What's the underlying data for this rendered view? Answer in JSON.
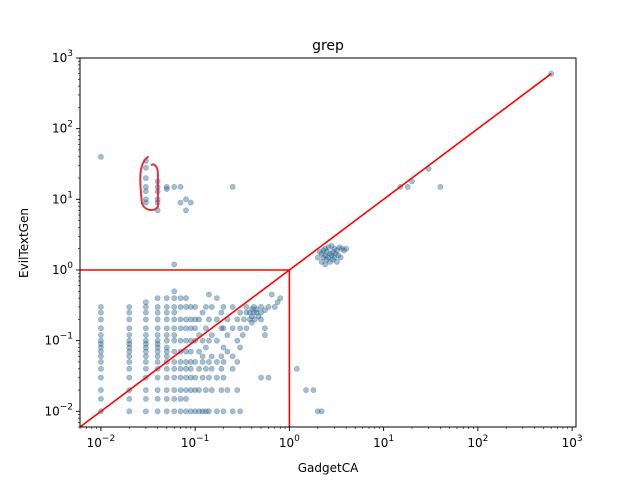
{
  "chart_data": {
    "type": "scatter",
    "title": "grep",
    "xlabel": "GadgetCA",
    "ylabel": "EvilTextGen",
    "xscale": "log",
    "yscale": "log",
    "xlim": [
      0.006,
      1100
    ],
    "ylim": [
      0.006,
      1000
    ],
    "x_tick_values": [
      0.01,
      0.1,
      1,
      10,
      100,
      1000
    ],
    "y_tick_values": [
      0.01,
      0.1,
      1,
      10,
      100,
      1000
    ],
    "x_tick_labels": [
      {
        "base": "10",
        "exp": "−2"
      },
      {
        "base": "10",
        "exp": "−1"
      },
      {
        "base": "10",
        "exp": "0"
      },
      {
        "base": "10",
        "exp": "1"
      },
      {
        "base": "10",
        "exp": "2"
      },
      {
        "base": "10",
        "exp": "3"
      }
    ],
    "y_tick_labels": [
      {
        "base": "10",
        "exp": "−2"
      },
      {
        "base": "10",
        "exp": "−1"
      },
      {
        "base": "10",
        "exp": "0"
      },
      {
        "base": "10",
        "exp": "1"
      },
      {
        "base": "10",
        "exp": "2"
      },
      {
        "base": "10",
        "exp": "3"
      }
    ],
    "grid": false,
    "legend": "none",
    "point_color": "#1f5f8b",
    "point_opacity": 0.4,
    "reference_color": "#ff0000",
    "annotation_color": "#e0303a",
    "reference_lines": [
      {
        "kind": "diagonal",
        "from": [
          0.006,
          0.006
        ],
        "to": [
          600,
          600
        ]
      },
      {
        "kind": "horizontal",
        "y": 1,
        "x_from": 0.006,
        "x_to": 1
      },
      {
        "kind": "vertical",
        "x": 1,
        "y_from": 0.006,
        "y_to": 1
      }
    ],
    "annotation": {
      "kind": "freehand-bracket",
      "around_x": 0.03,
      "y_range": [
        9,
        35
      ]
    },
    "series": [
      {
        "points": [
          [
            0.01,
            0.01
          ],
          [
            0.01,
            0.015
          ],
          [
            0.01,
            0.02
          ],
          [
            0.01,
            0.03
          ],
          [
            0.01,
            0.04
          ],
          [
            0.01,
            0.05
          ],
          [
            0.01,
            0.06
          ],
          [
            0.01,
            0.07
          ],
          [
            0.01,
            0.08
          ],
          [
            0.01,
            0.09
          ],
          [
            0.01,
            0.1
          ],
          [
            0.01,
            0.12
          ],
          [
            0.01,
            0.15
          ],
          [
            0.01,
            0.2
          ],
          [
            0.01,
            0.25
          ],
          [
            0.01,
            0.3
          ],
          [
            0.01,
            40
          ],
          [
            0.02,
            0.01
          ],
          [
            0.02,
            0.015
          ],
          [
            0.02,
            0.02
          ],
          [
            0.02,
            0.03
          ],
          [
            0.02,
            0.04
          ],
          [
            0.02,
            0.05
          ],
          [
            0.02,
            0.06
          ],
          [
            0.02,
            0.07
          ],
          [
            0.02,
            0.08
          ],
          [
            0.02,
            0.09
          ],
          [
            0.02,
            0.1
          ],
          [
            0.02,
            0.12
          ],
          [
            0.02,
            0.15
          ],
          [
            0.02,
            0.2
          ],
          [
            0.02,
            0.25
          ],
          [
            0.02,
            0.3
          ],
          [
            0.03,
            0.01
          ],
          [
            0.03,
            0.015
          ],
          [
            0.03,
            0.02
          ],
          [
            0.03,
            0.03
          ],
          [
            0.03,
            0.04
          ],
          [
            0.03,
            0.05
          ],
          [
            0.03,
            0.06
          ],
          [
            0.03,
            0.07
          ],
          [
            0.03,
            0.08
          ],
          [
            0.03,
            0.09
          ],
          [
            0.03,
            0.1
          ],
          [
            0.03,
            0.12
          ],
          [
            0.03,
            0.15
          ],
          [
            0.03,
            0.2
          ],
          [
            0.03,
            0.25
          ],
          [
            0.03,
            0.3
          ],
          [
            0.03,
            0.35
          ],
          [
            0.03,
            9
          ],
          [
            0.03,
            10
          ],
          [
            0.03,
            13
          ],
          [
            0.03,
            15
          ],
          [
            0.03,
            20
          ],
          [
            0.03,
            28
          ],
          [
            0.03,
            35
          ],
          [
            0.04,
            0.01
          ],
          [
            0.04,
            0.015
          ],
          [
            0.04,
            0.02
          ],
          [
            0.04,
            0.03
          ],
          [
            0.04,
            0.04
          ],
          [
            0.04,
            0.05
          ],
          [
            0.04,
            0.06
          ],
          [
            0.04,
            0.07
          ],
          [
            0.04,
            0.08
          ],
          [
            0.04,
            0.09
          ],
          [
            0.04,
            0.1
          ],
          [
            0.04,
            0.12
          ],
          [
            0.04,
            0.15
          ],
          [
            0.04,
            0.2
          ],
          [
            0.04,
            0.25
          ],
          [
            0.04,
            0.3
          ],
          [
            0.04,
            0.4
          ],
          [
            0.04,
            7
          ],
          [
            0.04,
            9
          ],
          [
            0.04,
            10
          ],
          [
            0.04,
            13
          ],
          [
            0.04,
            15
          ],
          [
            0.04,
            18
          ],
          [
            0.05,
            0.01
          ],
          [
            0.05,
            0.015
          ],
          [
            0.05,
            0.02
          ],
          [
            0.05,
            0.03
          ],
          [
            0.05,
            0.04
          ],
          [
            0.05,
            0.05
          ],
          [
            0.05,
            0.06
          ],
          [
            0.05,
            0.07
          ],
          [
            0.05,
            0.08
          ],
          [
            0.05,
            0.1
          ],
          [
            0.05,
            0.12
          ],
          [
            0.05,
            0.15
          ],
          [
            0.05,
            0.2
          ],
          [
            0.05,
            0.25
          ],
          [
            0.05,
            0.3
          ],
          [
            0.05,
            0.4
          ],
          [
            0.05,
            14
          ],
          [
            0.05,
            15
          ],
          [
            0.06,
            0.01
          ],
          [
            0.06,
            0.015
          ],
          [
            0.06,
            0.02
          ],
          [
            0.06,
            0.03
          ],
          [
            0.06,
            0.04
          ],
          [
            0.06,
            0.05
          ],
          [
            0.06,
            0.07
          ],
          [
            0.06,
            0.1
          ],
          [
            0.06,
            0.12
          ],
          [
            0.06,
            0.15
          ],
          [
            0.06,
            0.2
          ],
          [
            0.06,
            0.25
          ],
          [
            0.06,
            0.3
          ],
          [
            0.06,
            0.4
          ],
          [
            0.06,
            0.5
          ],
          [
            0.06,
            1.2
          ],
          [
            0.06,
            15
          ],
          [
            0.07,
            0.01
          ],
          [
            0.07,
            0.015
          ],
          [
            0.07,
            0.02
          ],
          [
            0.07,
            0.03
          ],
          [
            0.07,
            0.04
          ],
          [
            0.07,
            0.05
          ],
          [
            0.07,
            0.07
          ],
          [
            0.07,
            0.1
          ],
          [
            0.07,
            0.15
          ],
          [
            0.07,
            0.2
          ],
          [
            0.07,
            0.3
          ],
          [
            0.07,
            0.4
          ],
          [
            0.07,
            15
          ],
          [
            0.07,
            9
          ],
          [
            0.08,
            0.01
          ],
          [
            0.08,
            0.015
          ],
          [
            0.08,
            0.02
          ],
          [
            0.08,
            0.03
          ],
          [
            0.08,
            0.04
          ],
          [
            0.08,
            0.05
          ],
          [
            0.08,
            0.07
          ],
          [
            0.08,
            0.1
          ],
          [
            0.08,
            0.15
          ],
          [
            0.08,
            0.2
          ],
          [
            0.08,
            0.3
          ],
          [
            0.08,
            0.4
          ],
          [
            0.08,
            7
          ],
          [
            0.08,
            10
          ],
          [
            0.09,
            0.01
          ],
          [
            0.09,
            0.02
          ],
          [
            0.09,
            0.03
          ],
          [
            0.09,
            0.04
          ],
          [
            0.09,
            0.05
          ],
          [
            0.09,
            0.07
          ],
          [
            0.09,
            0.1
          ],
          [
            0.09,
            0.15
          ],
          [
            0.09,
            0.2
          ],
          [
            0.09,
            0.3
          ],
          [
            0.09,
            9
          ],
          [
            0.1,
            0.01
          ],
          [
            0.1,
            0.02
          ],
          [
            0.1,
            0.03
          ],
          [
            0.1,
            0.05
          ],
          [
            0.1,
            0.1
          ],
          [
            0.1,
            0.15
          ],
          [
            0.1,
            0.2
          ],
          [
            0.1,
            0.3
          ],
          [
            0.11,
            0.01
          ],
          [
            0.11,
            0.02
          ],
          [
            0.11,
            0.04
          ],
          [
            0.11,
            0.07
          ],
          [
            0.11,
            0.12
          ],
          [
            0.11,
            0.2
          ],
          [
            0.12,
            0.01
          ],
          [
            0.12,
            0.03
          ],
          [
            0.12,
            0.05
          ],
          [
            0.12,
            0.06
          ],
          [
            0.12,
            0.1
          ],
          [
            0.12,
            0.25
          ],
          [
            0.13,
            0.01
          ],
          [
            0.13,
            0.02
          ],
          [
            0.13,
            0.04
          ],
          [
            0.13,
            0.08
          ],
          [
            0.13,
            0.15
          ],
          [
            0.13,
            0.3
          ],
          [
            0.14,
            0.01
          ],
          [
            0.14,
            0.03
          ],
          [
            0.14,
            0.05
          ],
          [
            0.14,
            0.1
          ],
          [
            0.14,
            0.2
          ],
          [
            0.14,
            0.45
          ],
          [
            0.15,
            0.02
          ],
          [
            0.15,
            0.04
          ],
          [
            0.15,
            0.06
          ],
          [
            0.15,
            0.12
          ],
          [
            0.15,
            0.3
          ],
          [
            0.17,
            0.01
          ],
          [
            0.17,
            0.03
          ],
          [
            0.17,
            0.05
          ],
          [
            0.17,
            0.1
          ],
          [
            0.17,
            0.2
          ],
          [
            0.17,
            0.4
          ],
          [
            0.19,
            0.02
          ],
          [
            0.19,
            0.04
          ],
          [
            0.19,
            0.06
          ],
          [
            0.19,
            0.15
          ],
          [
            0.19,
            0.25
          ],
          [
            0.2,
            0.01
          ],
          [
            0.2,
            0.03
          ],
          [
            0.2,
            0.05
          ],
          [
            0.2,
            0.08
          ],
          [
            0.2,
            0.15
          ],
          [
            0.2,
            0.3
          ],
          [
            0.22,
            0.02
          ],
          [
            0.22,
            0.07
          ],
          [
            0.22,
            0.12
          ],
          [
            0.22,
            0.2
          ],
          [
            0.25,
            0.01
          ],
          [
            0.25,
            0.04
          ],
          [
            0.25,
            0.06
          ],
          [
            0.25,
            0.15
          ],
          [
            0.25,
            0.3
          ],
          [
            0.25,
            15
          ],
          [
            0.28,
            0.02
          ],
          [
            0.28,
            0.05
          ],
          [
            0.28,
            0.1
          ],
          [
            0.28,
            0.2
          ],
          [
            0.3,
            0.01
          ],
          [
            0.3,
            0.08
          ],
          [
            0.3,
            0.15
          ],
          [
            0.3,
            0.25
          ],
          [
            0.32,
            0.12
          ],
          [
            0.33,
            0.2
          ],
          [
            0.35,
            0.25
          ],
          [
            0.35,
            0.15
          ],
          [
            0.35,
            0.3
          ],
          [
            0.38,
            0.2
          ],
          [
            0.38,
            0.25
          ],
          [
            0.4,
            0.22
          ],
          [
            0.4,
            0.28
          ],
          [
            0.4,
            0.18
          ],
          [
            0.42,
            0.25
          ],
          [
            0.42,
            0.3
          ],
          [
            0.43,
            0.2
          ],
          [
            0.45,
            0.25
          ],
          [
            0.45,
            0.28
          ],
          [
            0.47,
            0.22
          ],
          [
            0.5,
            0.25
          ],
          [
            0.5,
            0.3
          ],
          [
            0.5,
            0.2
          ],
          [
            0.55,
            0.27
          ],
          [
            0.6,
            0.3
          ],
          [
            0.5,
            0.03
          ],
          [
            0.55,
            0.15
          ],
          [
            0.55,
            0.12
          ],
          [
            0.6,
            0.03
          ],
          [
            0.65,
            0.45
          ],
          [
            0.7,
            0.3
          ],
          [
            0.75,
            0.35
          ],
          [
            0.8,
            0.4
          ],
          [
            1.2,
            0.04
          ],
          [
            1.5,
            0.02
          ],
          [
            1.8,
            0.02
          ],
          [
            2.0,
            0.01
          ],
          [
            2.2,
            0.01
          ],
          [
            2.0,
            1.5
          ],
          [
            2.1,
            1.8
          ],
          [
            2.2,
            1.3
          ],
          [
            2.2,
            1.7
          ],
          [
            2.3,
            1.9
          ],
          [
            2.3,
            1.5
          ],
          [
            2.4,
            1.6
          ],
          [
            2.4,
            1.2
          ],
          [
            2.4,
            2.0
          ],
          [
            2.5,
            1.4
          ],
          [
            2.5,
            1.8
          ],
          [
            2.6,
            1.5
          ],
          [
            2.6,
            2.1
          ],
          [
            2.7,
            1.7
          ],
          [
            2.7,
            1.3
          ],
          [
            2.8,
            1.6
          ],
          [
            2.8,
            2.2
          ],
          [
            2.9,
            1.8
          ],
          [
            2.9,
            1.4
          ],
          [
            3.0,
            1.5
          ],
          [
            3.0,
            2.0
          ],
          [
            3.1,
            1.7
          ],
          [
            3.2,
            1.3
          ],
          [
            3.2,
            1.9
          ],
          [
            3.3,
            1.6
          ],
          [
            3.4,
            2.1
          ],
          [
            3.5,
            1.5
          ],
          [
            3.6,
            2.0
          ],
          [
            3.8,
            1.9
          ],
          [
            4.0,
            2.0
          ],
          [
            15,
            15
          ],
          [
            18,
            15
          ],
          [
            20,
            18
          ],
          [
            30,
            27
          ],
          [
            40,
            15
          ],
          [
            600,
            600
          ]
        ]
      }
    ]
  }
}
